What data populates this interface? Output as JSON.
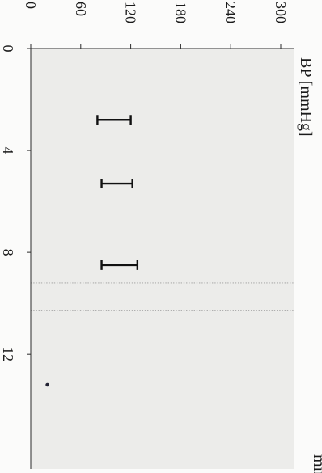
{
  "chart_data": {
    "type": "scatter",
    "title": "",
    "ylabel": "BP [mmHg]",
    "xlabel": "min",
    "x_ticks": [
      "0",
      "4",
      "8",
      "12"
    ],
    "y_ticks": [
      "0",
      "60",
      "120",
      "180",
      "240",
      "300"
    ],
    "xlim": [
      0,
      16.5
    ],
    "ylim": [
      0,
      300
    ],
    "grid": false,
    "x_markers": [
      9.2,
      10.3
    ],
    "series": [
      {
        "type": "range",
        "points": [
          {
            "x": 2.8,
            "low": 80,
            "high": 120
          },
          {
            "x": 5.3,
            "low": 85,
            "high": 122
          },
          {
            "x": 8.5,
            "low": 85,
            "high": 128
          }
        ]
      },
      {
        "type": "point",
        "points": [
          {
            "x": 13.2,
            "y": 20
          }
        ]
      }
    ],
    "colors": {
      "plot_background": "#ececea",
      "ink": "#111111",
      "marker_line": "#9a9a9a"
    }
  }
}
